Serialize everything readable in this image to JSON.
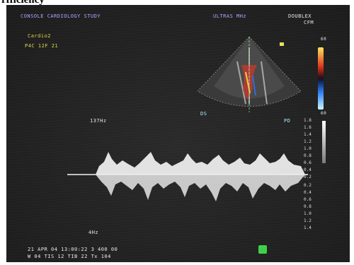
{
  "fragment_title": "rfficiency",
  "header": {
    "institution": "CONSOLE CARDIOLOGY STUDY",
    "probe": "ULTRAS   MHz",
    "mode_label": "DOUBLEX",
    "mode_sub": "CFM"
  },
  "patient": {
    "name": "Cardio2",
    "frame_info": "P4C   12F 21"
  },
  "doppler": {
    "sweep_label": "137Hz",
    "depth_label": "DS",
    "sample_label": "PD",
    "time_label": "4Hz"
  },
  "velocity_scale": [
    "1.8",
    "1.6",
    "1.4",
    "1.2",
    "1.0",
    "0.8",
    "0.6",
    "0.4",
    "0.2",
    "0.2",
    "0.4",
    "0.6",
    "0.8",
    "1.0",
    "1.2",
    "1.4",
    "1.6",
    "1.8"
  ],
  "color_scale": {
    "top": "60",
    "bottom": "60",
    "unit": "cm/s"
  },
  "footer": {
    "line1": "21 APR 04  13:00:22     3  400  00",
    "line2": "W 04  TIS 12  TIB 22  Tx  104"
  },
  "colors": {
    "screen": "#232323",
    "accent_green": "#3fd04a"
  }
}
